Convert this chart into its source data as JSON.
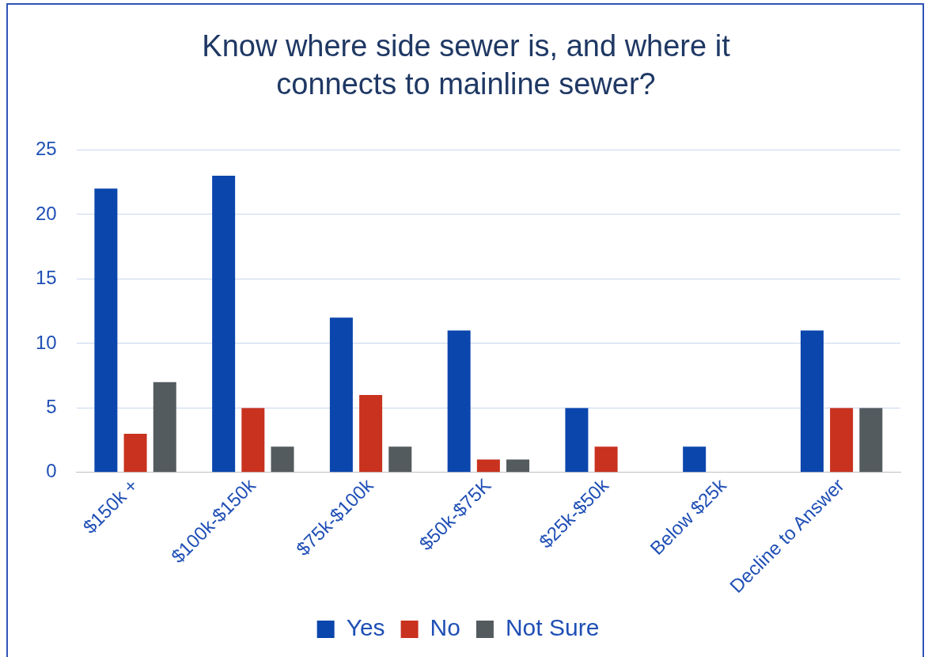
{
  "chart_data": {
    "type": "bar",
    "title": "Know where side sewer is, and where it connects to mainline sewer?",
    "categories": [
      "$150k +",
      "$100k-$150k",
      "$75k-$100k",
      "$50k-$75K",
      "$25k-$50k",
      "Below $25k",
      "Decline to Answer"
    ],
    "series": [
      {
        "name": "Yes",
        "color": "#0b46ad",
        "values": [
          22,
          23,
          12,
          11,
          5,
          2,
          11
        ]
      },
      {
        "name": "No",
        "color": "#c8321e",
        "values": [
          3,
          5,
          6,
          1,
          2,
          0,
          5
        ]
      },
      {
        "name": "Not Sure",
        "color": "#545b5e",
        "values": [
          7,
          2,
          2,
          1,
          0,
          0,
          5
        ]
      }
    ],
    "ylim": [
      0,
      25
    ],
    "yticks": [
      0,
      5,
      10,
      15,
      20,
      25
    ],
    "grid": "y",
    "legend": "bottom"
  }
}
